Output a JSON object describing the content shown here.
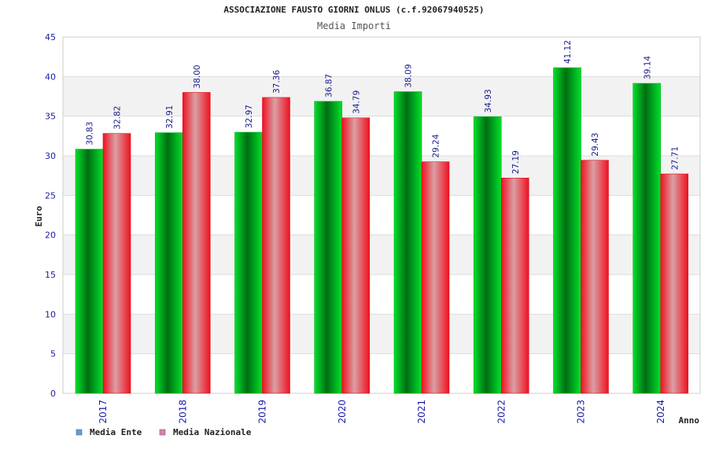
{
  "chart_data": {
    "type": "bar",
    "title": "ASSOCIAZIONE FAUSTO GIORNI ONLUS (c.f.92067940525)",
    "subtitle": "Media Importi",
    "xlabel": "Anno",
    "ylabel": "Euro",
    "ylim": [
      0,
      45
    ],
    "yticks": [
      "0",
      "5",
      "10",
      "15",
      "20",
      "25",
      "30",
      "35",
      "40",
      "45"
    ],
    "categories": [
      "2017",
      "2018",
      "2019",
      "2020",
      "2021",
      "2022",
      "2023",
      "2024"
    ],
    "series": [
      {
        "name": "Media Ente",
        "values": [
          30.83,
          32.91,
          32.97,
          36.87,
          38.09,
          34.93,
          41.12,
          39.14
        ],
        "labels": [
          "30.83",
          "32.91",
          "32.97",
          "36.87",
          "38.09",
          "34.93",
          "41.12",
          "39.14"
        ],
        "legend_color": "#5b9bea"
      },
      {
        "name": "Media Nazionale",
        "values": [
          32.82,
          38.0,
          37.36,
          34.79,
          29.24,
          27.19,
          29.43,
          27.71
        ],
        "labels": [
          "32.82",
          "38.00",
          "37.36",
          "34.79",
          "29.24",
          "27.19",
          "29.43",
          "27.71"
        ],
        "legend_color": "#dd7fb0"
      }
    ],
    "grid": true,
    "legend": "bottom-left"
  }
}
